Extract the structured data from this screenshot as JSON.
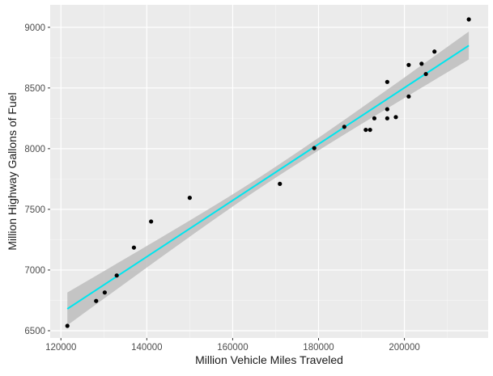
{
  "chart_data": {
    "type": "scatter",
    "title": "",
    "xlabel": "Million Vehicle Miles Traveled",
    "ylabel": "Million Highway Gallons of Fuel",
    "xlim": [
      117500,
      219500
    ],
    "ylim": [
      6440,
      9185
    ],
    "x_ticks": [
      120000,
      140000,
      160000,
      180000,
      200000
    ],
    "x_minor_ticks": [
      130000,
      150000,
      170000,
      190000,
      210000
    ],
    "y_ticks": [
      6500,
      7000,
      7500,
      8000,
      8500,
      9000
    ],
    "y_minor_ticks": [
      6750,
      7250,
      7750,
      8250,
      8750
    ],
    "grid": true,
    "points": [
      {
        "x": 121500,
        "y": 6540
      },
      {
        "x": 128200,
        "y": 6745
      },
      {
        "x": 130200,
        "y": 6815
      },
      {
        "x": 133000,
        "y": 6955
      },
      {
        "x": 137000,
        "y": 7185
      },
      {
        "x": 141000,
        "y": 7400
      },
      {
        "x": 150000,
        "y": 7595
      },
      {
        "x": 171000,
        "y": 7710
      },
      {
        "x": 179000,
        "y": 8005
      },
      {
        "x": 186000,
        "y": 8180
      },
      {
        "x": 191000,
        "y": 8155
      },
      {
        "x": 192000,
        "y": 8155
      },
      {
        "x": 193000,
        "y": 8250
      },
      {
        "x": 196000,
        "y": 8250
      },
      {
        "x": 196000,
        "y": 8325
      },
      {
        "x": 196000,
        "y": 8550
      },
      {
        "x": 198000,
        "y": 8260
      },
      {
        "x": 201000,
        "y": 8430
      },
      {
        "x": 201000,
        "y": 8690
      },
      {
        "x": 204000,
        "y": 8700
      },
      {
        "x": 205000,
        "y": 8615
      },
      {
        "x": 207000,
        "y": 8800
      },
      {
        "x": 215000,
        "y": 9065
      }
    ],
    "fit": {
      "method": "linear",
      "x_start": 121500,
      "y_start": 6680,
      "x_end": 215000,
      "y_end": 8850,
      "band_start_halfwidth": 135,
      "band_mid_halfwidth": 45,
      "band_end_halfwidth": 115,
      "line_color": "#00E5EE",
      "band_color": "#BDBDBD"
    },
    "colors": {
      "panel": "#EBEBEB",
      "grid_major": "#FFFFFF",
      "point": "#000000",
      "axis_text": "#4D4D4D",
      "title_text": "#1A1A1A"
    }
  }
}
